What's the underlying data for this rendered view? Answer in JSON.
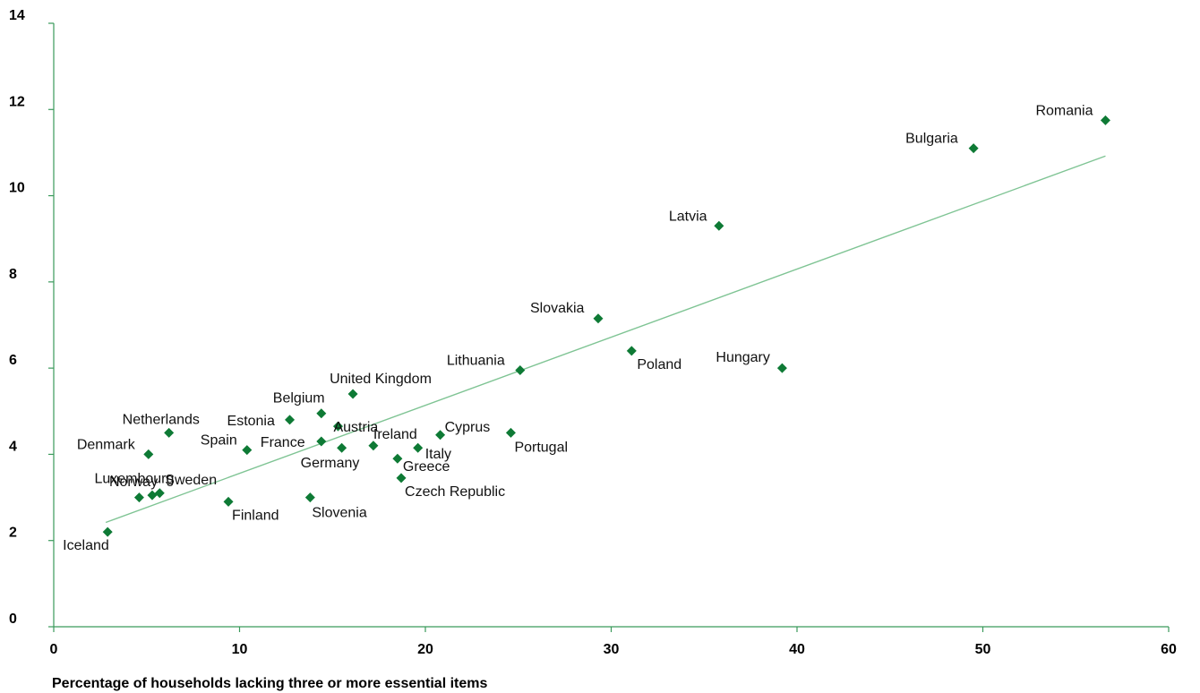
{
  "chart_data": {
    "type": "scatter",
    "title": "",
    "xlabel": "Percentage of households lacking three or more essential items",
    "ylabel": "",
    "xlim": [
      0,
      60
    ],
    "ylim": [
      0,
      14
    ],
    "x_ticks": [
      "0",
      "10",
      "20",
      "30",
      "40",
      "50",
      "60"
    ],
    "y_ticks": [
      "0",
      "2",
      "4",
      "6",
      "8",
      "10",
      "12",
      "14"
    ],
    "grid": false,
    "legend": "none",
    "marker": "diamond",
    "colors": {
      "points": "#0e7a35",
      "trendline": "#7fc494",
      "axes": "#3a9a5b"
    },
    "trendline": {
      "x": [
        2.8,
        56.6
      ],
      "y": [
        2.42,
        10.92
      ]
    },
    "points": [
      {
        "label": "Iceland",
        "x": 2.9,
        "y": 2.2
      },
      {
        "label": "Luxembourg",
        "x": 4.6,
        "y": 3.0
      },
      {
        "label": "Norway",
        "x": 5.3,
        "y": 3.05
      },
      {
        "label": "Sweden",
        "x": 5.7,
        "y": 3.1
      },
      {
        "label": "Denmark",
        "x": 5.1,
        "y": 4.0
      },
      {
        "label": "Netherlands",
        "x": 6.2,
        "y": 4.5
      },
      {
        "label": "Finland",
        "x": 9.4,
        "y": 2.9
      },
      {
        "label": "Spain",
        "x": 10.4,
        "y": 4.1
      },
      {
        "label": "Estonia",
        "x": 12.7,
        "y": 4.8
      },
      {
        "label": "Slovenia",
        "x": 13.8,
        "y": 3.0
      },
      {
        "label": "France",
        "x": 14.4,
        "y": 4.3
      },
      {
        "label": "Belgium",
        "x": 14.4,
        "y": 4.95
      },
      {
        "label": "Austria",
        "x": 15.3,
        "y": 4.65
      },
      {
        "label": "Germany",
        "x": 15.5,
        "y": 4.15
      },
      {
        "label": "United Kingdom",
        "x": 16.1,
        "y": 5.4
      },
      {
        "label": "Ireland",
        "x": 17.2,
        "y": 4.2
      },
      {
        "label": "Greece",
        "x": 18.5,
        "y": 3.9
      },
      {
        "label": "Czech Republic",
        "x": 18.7,
        "y": 3.45
      },
      {
        "label": "Italy",
        "x": 19.6,
        "y": 4.15
      },
      {
        "label": "Cyprus",
        "x": 20.8,
        "y": 4.45
      },
      {
        "label": "Portugal",
        "x": 24.6,
        "y": 4.5
      },
      {
        "label": "Lithuania",
        "x": 25.1,
        "y": 5.95
      },
      {
        "label": "Slovakia",
        "x": 29.3,
        "y": 7.15
      },
      {
        "label": "Poland",
        "x": 31.1,
        "y": 6.4
      },
      {
        "label": "Latvia",
        "x": 35.8,
        "y": 9.3
      },
      {
        "label": "Hungary",
        "x": 39.2,
        "y": 6.0
      },
      {
        "label": "Bulgaria",
        "x": 49.5,
        "y": 11.1
      },
      {
        "label": "Romania",
        "x": 56.6,
        "y": 11.75
      }
    ]
  }
}
